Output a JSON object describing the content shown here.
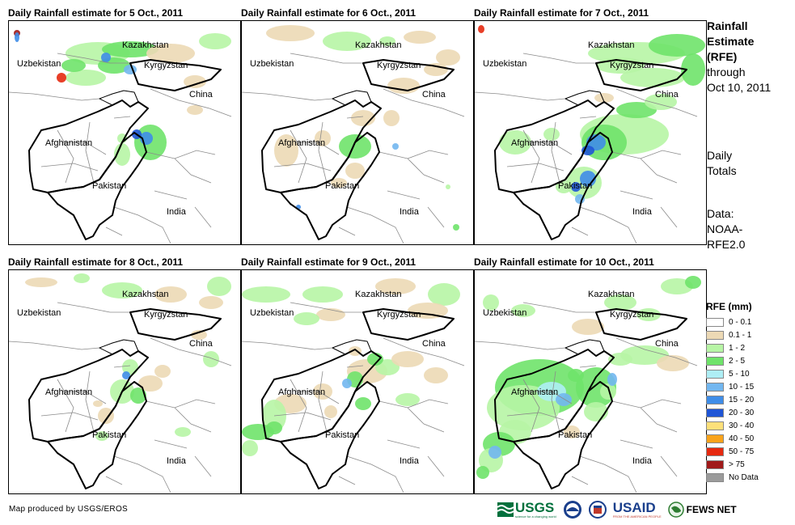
{
  "panels": [
    {
      "title": "Daily Rainfall estimate for 5 Oct., 2011",
      "scheme": 1
    },
    {
      "title": "Daily Rainfall estimate for 6 Oct., 2011",
      "scheme": 2
    },
    {
      "title": "Daily Rainfall estimate for 7 Oct., 2011",
      "scheme": 3
    },
    {
      "title": "Daily Rainfall estimate for 8 Oct., 2011",
      "scheme": 4
    },
    {
      "title": "Daily Rainfall estimate for 9 Oct., 2011",
      "scheme": 5
    },
    {
      "title": "Daily Rainfall estimate for 10 Oct., 2011",
      "scheme": 6
    }
  ],
  "map_labels": {
    "kazakhstan": "Kazakhstan",
    "uzbekistan": "Uzbekistan",
    "kyrgyzstan": "Kyrgyzstan",
    "china": "China",
    "afghanistan": "Afghanistan",
    "pakistan": "Pakistan",
    "india": "India"
  },
  "side": {
    "title_line1": "Rainfall",
    "title_line2": "Estimate",
    "title_line3": "(RFE)",
    "through": "through",
    "date": "Oct 10, 2011",
    "daily1": "Daily",
    "daily2": "Totals",
    "data1": "Data:",
    "data2": "NOAA-",
    "data3": "RFE2.0"
  },
  "legend": {
    "title": "RFE (mm)",
    "items": [
      {
        "label": "0 - 0.1",
        "color": "#ffffff"
      },
      {
        "label": "0.1 - 1",
        "color": "#ecd9b5"
      },
      {
        "label": "1 - 2",
        "color": "#b7f5a5"
      },
      {
        "label": "2 - 5",
        "color": "#6fe36a"
      },
      {
        "label": "5 - 10",
        "color": "#aeeef5"
      },
      {
        "label": "10 - 15",
        "color": "#72b7f0"
      },
      {
        "label": "15 - 20",
        "color": "#3f8de8"
      },
      {
        "label": "20 - 30",
        "color": "#1f55d6"
      },
      {
        "label": "30 - 40",
        "color": "#fde07a"
      },
      {
        "label": "40 - 50",
        "color": "#f9a31b"
      },
      {
        "label": "50 - 75",
        "color": "#e6290f"
      },
      {
        "label": "> 75",
        "color": "#a01a1a"
      },
      {
        "label": "No Data",
        "color": "#9b9b9b"
      }
    ]
  },
  "credit": "Map produced by USGS/EROS",
  "logos": {
    "usgs": "USGS",
    "usgs_tag": "science for a changing world",
    "usaid": "USAID",
    "usaid_tag": "FROM THE AMERICAN PEOPLE",
    "fews": "FEWS NET"
  }
}
